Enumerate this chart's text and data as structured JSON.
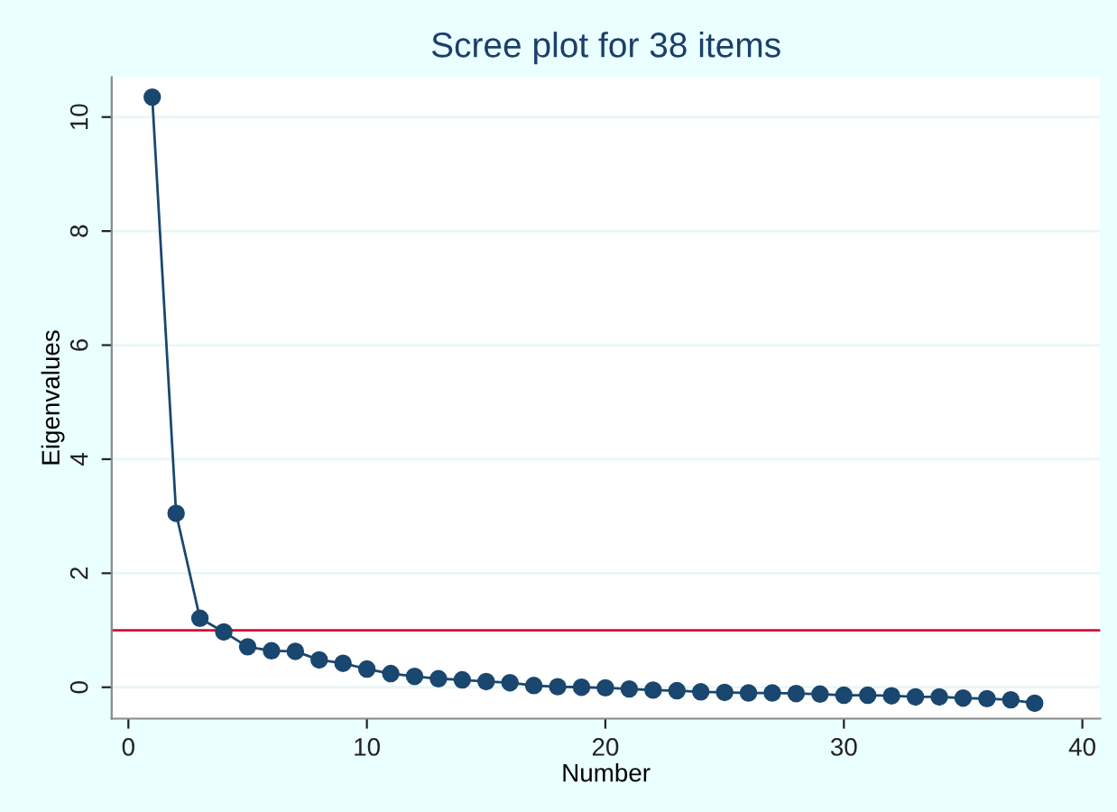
{
  "chart_data": {
    "type": "line",
    "title": "Scree plot for 38 items",
    "xlabel": "Number",
    "ylabel": "Eigenvalues",
    "x": [
      1,
      2,
      3,
      4,
      5,
      6,
      7,
      8,
      9,
      10,
      11,
      12,
      13,
      14,
      15,
      16,
      17,
      18,
      19,
      20,
      21,
      22,
      23,
      24,
      25,
      26,
      27,
      28,
      29,
      30,
      31,
      32,
      33,
      34,
      35,
      36,
      37,
      38
    ],
    "series": [
      {
        "color": "#1a476f",
        "values": [
          10.35,
          3.05,
          1.21,
          0.97,
          0.71,
          0.64,
          0.63,
          0.48,
          0.42,
          0.32,
          0.24,
          0.19,
          0.15,
          0.13,
          0.1,
          0.08,
          0.03,
          0.01,
          0.0,
          -0.01,
          -0.03,
          -0.05,
          -0.06,
          -0.08,
          -0.09,
          -0.1,
          -0.1,
          -0.11,
          -0.12,
          -0.14,
          -0.14,
          -0.15,
          -0.17,
          -0.17,
          -0.19,
          -0.2,
          -0.22,
          -0.28
        ]
      }
    ],
    "xlim": [
      -0.7,
      40.75
    ],
    "ylim": [
      -0.55,
      10.7
    ],
    "xticks": [
      0,
      10,
      20,
      30,
      40
    ],
    "yticks": [
      0,
      2,
      4,
      6,
      8,
      10
    ],
    "ref_lines": [
      {
        "axis": "y",
        "value": 1,
        "color": "#d0103a"
      }
    ],
    "grid": "y",
    "marker": "circle",
    "line_style": "solid"
  }
}
